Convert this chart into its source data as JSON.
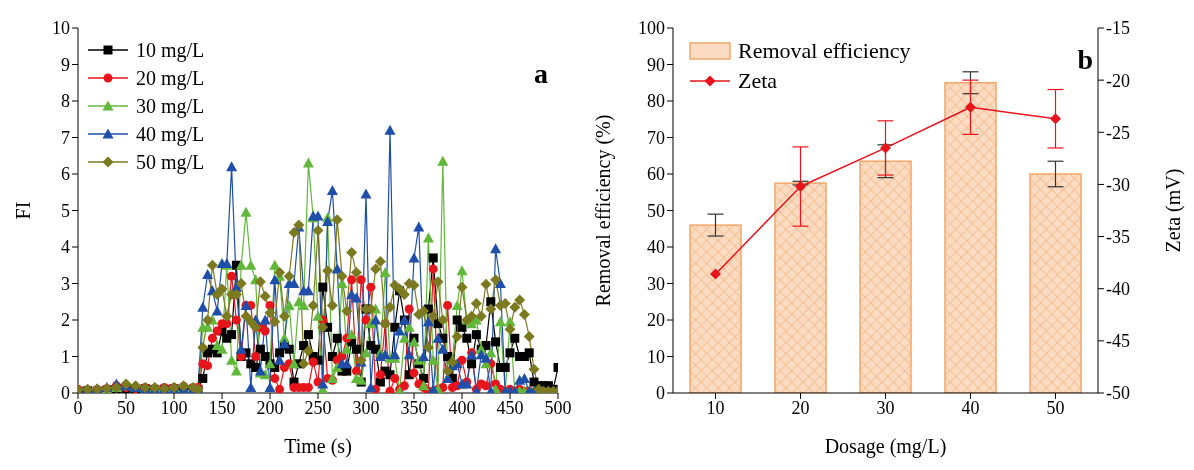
{
  "chart_data": [
    {
      "type": "line",
      "xlabel": "Time (s)",
      "ylabel": "FI",
      "annotations": [
        "a"
      ],
      "xlim": [
        0,
        500
      ],
      "xticks": [
        0,
        50,
        100,
        150,
        200,
        250,
        300,
        350,
        400,
        450,
        500
      ],
      "ylim": [
        0,
        10
      ],
      "yticks": [
        0,
        1,
        2,
        3,
        4,
        5,
        6,
        7,
        8,
        9,
        10
      ],
      "grid": false,
      "legend": "top left",
      "line_style": "solid",
      "x": [
        0,
        10,
        20,
        30,
        40,
        50,
        60,
        70,
        80,
        90,
        100,
        110,
        120,
        125,
        130,
        135,
        140,
        145,
        150,
        155,
        160,
        165,
        170,
        175,
        180,
        185,
        190,
        195,
        200,
        205,
        210,
        215,
        220,
        225,
        230,
        235,
        240,
        245,
        250,
        255,
        260,
        265,
        270,
        275,
        280,
        285,
        290,
        295,
        300,
        305,
        310,
        315,
        320,
        325,
        330,
        335,
        340,
        345,
        350,
        355,
        360,
        365,
        370,
        375,
        380,
        385,
        390,
        395,
        400,
        405,
        410,
        415,
        420,
        425,
        430,
        435,
        440,
        445,
        450,
        455,
        460,
        465,
        470,
        475,
        480,
        485,
        490,
        495,
        500
      ],
      "series": [
        {
          "name": "10 mg/L",
          "color": "#000000",
          "marker": "square",
          "values": [
            0.05,
            0.06,
            0.05,
            0.08,
            0.1,
            0.12,
            0.1,
            0.12,
            0.1,
            0.1,
            0.12,
            0.1,
            0.1,
            0.1,
            0.4,
            1.1,
            1.2,
            1.1,
            1.7,
            1.5,
            1.6,
            3.5,
            1.0,
            1.1,
            0.8,
            0.7,
            1.2,
            1.0,
            0.8,
            0.7,
            1.1,
            1.3,
            1.2,
            0.3,
            0.8,
            1.3,
            1.6,
            1.0,
            0.9,
            2.9,
            1.8,
            1.0,
            1.5,
            0.6,
            0.6,
            1.4,
            1.2,
            0.3,
            2.3,
            1.3,
            1.2,
            0.3,
            0.6,
            0.5,
            1.8,
            2.8,
            2.0,
            0.5,
            1.5,
            0.8,
            0.4,
            2.3,
            3.7,
            1.9,
            1.5,
            1.0,
            0.4,
            2.0,
            1.8,
            1.5,
            0.8,
            1.6,
            1.2,
            1.3,
            2.5,
            1.4,
            0.7,
            0.7,
            1.1,
            1.5,
            1.0,
            1.0,
            1.1,
            0.3,
            0.2,
            0.2,
            0.2,
            0.1,
            0.7
          ]
        },
        {
          "name": "20 mg/L",
          "color": "#e8141c",
          "marker": "circle",
          "values": [
            0.1,
            0.08,
            0.1,
            0.12,
            0.2,
            0.15,
            0.12,
            0.15,
            0.12,
            0.15,
            0.15,
            0.18,
            0.15,
            0.15,
            0.8,
            0.75,
            1.5,
            1.7,
            1.9,
            1.9,
            3.2,
            2.0,
            1.0,
            2.4,
            2.4,
            1.0,
            1.8,
            1.7,
            2.4,
            0.4,
            0.1,
            0.7,
            0.8,
            0.15,
            0.15,
            0.15,
            0.15,
            0.85,
            0.3,
            2.0,
            0.4,
            0.35,
            0.9,
            1.0,
            1.5,
            3.1,
            0.6,
            3.1,
            2.0,
            2.9,
            0.1,
            0.5,
            1.9,
            0.05,
            0.4,
            0.1,
            0.2,
            2.3,
            0.55,
            0.25,
            0.15,
            0.05,
            3.4,
            0.1,
            0.15,
            2.4,
            0.15,
            0.2,
            0.9,
            0.3,
            1.1,
            0.1,
            0.25,
            0.2,
            0.8,
            0.25,
            0.1,
            0.05,
            0.1,
            0.05,
            0.1,
            0.05,
            0.05,
            null,
            null,
            null,
            null,
            null,
            null
          ]
        },
        {
          "name": "30 mg/L",
          "color": "#62b83a",
          "marker": "triangle",
          "values": [
            null,
            null,
            0.12,
            0.1,
            0.15,
            0.2,
            0.15,
            0.12,
            0.15,
            0.12,
            0.15,
            0.12,
            0.12,
            0.1,
            1.8,
            1.8,
            2.0,
            1.3,
            1.2,
            3.5,
            0.9,
            0.6,
            3.5,
            4.95,
            3.5,
            3.1,
            0.55,
            0.5,
            0.8,
            3.5,
            3.2,
            1.5,
            2.4,
            0.8,
            2.5,
            2.4,
            6.3,
            4.8,
            2.1,
            0.1,
            4.8,
            0.4,
            0.7,
            3.0,
            1.2,
            1.6,
            0.4,
            0.35,
            1.1,
            1.9,
            2.3,
            1.1,
            3.3,
            0.95,
            0.95,
            0.05,
            1.5,
            1.8,
            1.4,
            0.9,
            0.2,
            4.25,
            0.9,
            0.1,
            6.35,
            0.4,
            0.9,
            2.4,
            3.35,
            2.0,
            1.9,
            2.0,
            1.2,
            0.8,
            1.1,
            0.1,
            1.95,
            0.05,
            1.95,
            0.05,
            0.05,
            0.05,
            0.05,
            0.05,
            0.05,
            null,
            null,
            null,
            null
          ]
        },
        {
          "name": "40 mg/L",
          "color": "#1f4fa8",
          "marker": "triangle",
          "values": [
            0.05,
            0.08,
            0.1,
            0.15,
            0.25,
            0.2,
            0.15,
            0.12,
            0.1,
            0.1,
            0.1,
            0.1,
            0.1,
            0.1,
            2.35,
            3.25,
            2.8,
            2.25,
            3.55,
            3.55,
            6.2,
            2.9,
            1.2,
            2.4,
            0.15,
            2.0,
            0.6,
            2.0,
            0.15,
            3.1,
            0.9,
            1.35,
            3.0,
            3.0,
            4.55,
            2.8,
            2.8,
            4.85,
            4.85,
            0.25,
            4.7,
            5.55,
            3.4,
            0.8,
            0.8,
            2.7,
            2.6,
            0.85,
            5.45,
            0.15,
            2.0,
            1.0,
            1.05,
            7.2,
            1.05,
            1.7,
            2.0,
            1.05,
            3.7,
            4.55,
            1.0,
            1.95,
            0.1,
            1.5,
            1.2,
            0.4,
            0.75,
            0.8,
            0.25,
            0.25,
            1.05,
            0.05,
            1.05,
            0.95,
            0.05,
            3.95,
            3.0,
            0.05,
            0.05,
            0.05,
            0.35,
            0.4,
            0.05,
            0.05,
            0.05,
            0.05,
            null,
            null,
            null
          ]
        },
        {
          "name": "50 mg/L",
          "color": "#7c7a21",
          "marker": "diamond",
          "values": [
            0.08,
            0.1,
            0.1,
            0.12,
            0.15,
            0.25,
            0.2,
            0.15,
            0.15,
            0.12,
            0.15,
            0.2,
            0.15,
            0.1,
            1.25,
            2.0,
            3.5,
            2.7,
            2.85,
            2.1,
            2.7,
            2.7,
            3.0,
            2.1,
            1.95,
            1.8,
            3.05,
            2.65,
            2.2,
            1.95,
            3.3,
            2.1,
            3.2,
            4.4,
            4.6,
            0.8,
            1.15,
            2.4,
            4.45,
            1.8,
            3.35,
            2.4,
            4.75,
            3.2,
            2.25,
            3.85,
            3.3,
            0.9,
            2.3,
            2.3,
            3.4,
            3.6,
            1.9,
            2.35,
            2.95,
            2.85,
            2.7,
            3.0,
            2.95,
            2.15,
            2.25,
            1.25,
            2.1,
            3.05,
            2.0,
            0.6,
            0.85,
            1.55,
            2.9,
            2.0,
            2.1,
            2.45,
            2.1,
            2.98,
            2.3,
            3.1,
            2.4,
            2.45,
            1.75,
            2.35,
            2.55,
            2.15,
            1.55,
            0.65,
            0.1,
            0.05,
            0.05,
            0.05,
            0.05
          ]
        }
      ]
    },
    {
      "type": "bar",
      "xlabel": "Dosage (mg/L)",
      "ylabel": "Removal efficiency (%)",
      "y2label": "Zeta (mV)",
      "annotations": [
        "b"
      ],
      "categories": [
        "10",
        "20",
        "30",
        "40",
        "50"
      ],
      "ylim": [
        0,
        100
      ],
      "yticks": [
        0,
        10,
        20,
        30,
        40,
        50,
        60,
        70,
        80,
        90,
        100
      ],
      "y2lim": [
        -50,
        -15
      ],
      "y2ticks": [
        -50,
        -45,
        -40,
        -35,
        -30,
        -25,
        -20,
        -15
      ],
      "grid": false,
      "legend": "top left",
      "series": [
        {
          "name": "Removal efficiency",
          "type": "bar",
          "color": "#fbdcc2",
          "values": [
            46,
            57.5,
            63.5,
            85,
            60
          ],
          "errors": [
            3,
            0.5,
            4.5,
            3,
            3.5
          ]
        },
        {
          "name": "Zeta",
          "type": "line",
          "axis": "y2",
          "color": "#e8141c",
          "marker": "diamond",
          "values": [
            -38.6,
            -30.2,
            -26.5,
            -22.6,
            -23.7
          ],
          "errors": [
            null,
            3.8,
            2.6,
            2.6,
            2.8
          ]
        }
      ]
    }
  ]
}
